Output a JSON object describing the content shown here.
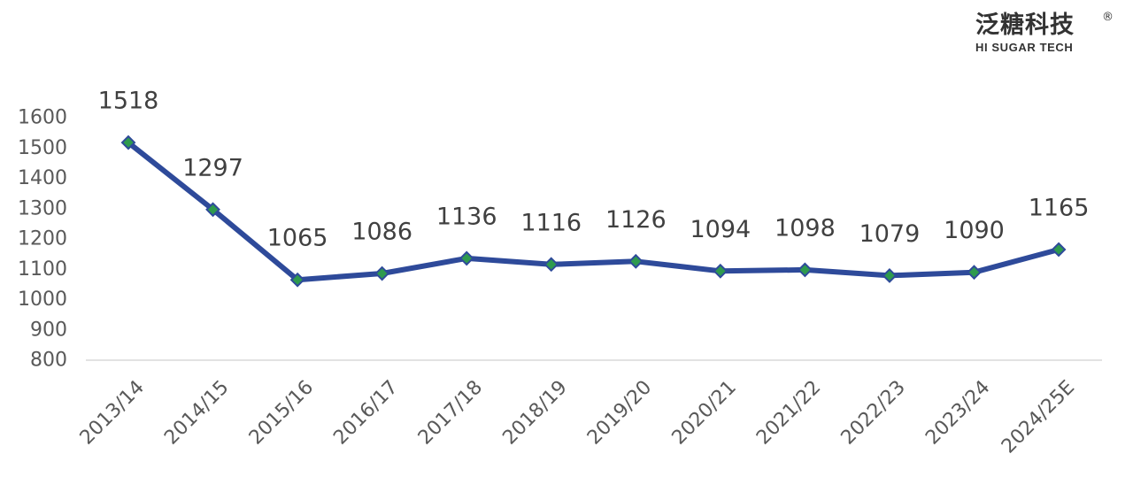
{
  "logo": {
    "chinese_text": "泛糖科技",
    "registered_mark": "®",
    "english_text": "HI SUGAR TECH"
  },
  "chart_data": {
    "type": "line",
    "title": "",
    "xlabel": "",
    "ylabel": "",
    "categories": [
      "2013/14",
      "2014/15",
      "2015/16",
      "2016/17",
      "2017/18",
      "2018/19",
      "2019/20",
      "2020/21",
      "2021/22",
      "2022/23",
      "2023/24",
      "2024/25E"
    ],
    "series": [
      {
        "values": [
          1518,
          1297,
          1065,
          1086,
          1136,
          1116,
          1126,
          1094,
          1098,
          1079,
          1090,
          1165
        ]
      }
    ],
    "data_labels": [
      "1518",
      "1297",
      "1065",
      "1086",
      "1136",
      "1116",
      "1126",
      "1094",
      "1098",
      "1079",
      "1090",
      "1165"
    ],
    "yticks": [
      800,
      900,
      1000,
      1100,
      1200,
      1300,
      1400,
      1500,
      1600
    ],
    "ylim": [
      800,
      1600
    ],
    "grid": false,
    "legend": "none",
    "colors": {
      "line": "#2E4A9A",
      "marker_fill": "#2E9A4E",
      "axis": "#D9D9D9",
      "text": "#595959",
      "label_text": "#404040"
    }
  }
}
